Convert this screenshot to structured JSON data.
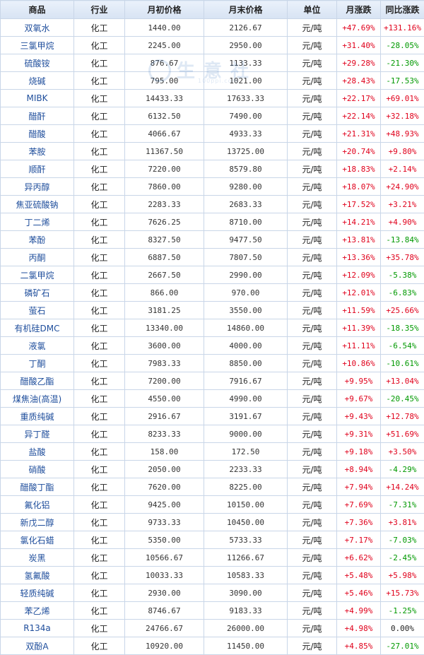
{
  "headers": [
    "商品",
    "行业",
    "月初价格",
    "月末价格",
    "单位",
    "月涨跌",
    "同比涨跌"
  ],
  "watermark": {
    "text": "生意社",
    "url": "100ppi.com"
  },
  "rows": [
    {
      "name": "双氧水",
      "industry": "化工",
      "start": "1440.00",
      "end": "2126.67",
      "unit": "元/吨",
      "mom": "+47.69%",
      "yoy": "+131.16%"
    },
    {
      "name": "三氯甲烷",
      "industry": "化工",
      "start": "2245.00",
      "end": "2950.00",
      "unit": "元/吨",
      "mom": "+31.40%",
      "yoy": "-28.05%"
    },
    {
      "name": "硫酸铵",
      "industry": "化工",
      "start": "876.67",
      "end": "1133.33",
      "unit": "元/吨",
      "mom": "+29.28%",
      "yoy": "-21.30%"
    },
    {
      "name": "烧碱",
      "industry": "化工",
      "start": "795.00",
      "end": "1021.00",
      "unit": "元/吨",
      "mom": "+28.43%",
      "yoy": "-17.53%"
    },
    {
      "name": "MIBK",
      "industry": "化工",
      "start": "14433.33",
      "end": "17633.33",
      "unit": "元/吨",
      "mom": "+22.17%",
      "yoy": "+69.01%"
    },
    {
      "name": "醋酐",
      "industry": "化工",
      "start": "6132.50",
      "end": "7490.00",
      "unit": "元/吨",
      "mom": "+22.14%",
      "yoy": "+32.18%"
    },
    {
      "name": "醋酸",
      "industry": "化工",
      "start": "4066.67",
      "end": "4933.33",
      "unit": "元/吨",
      "mom": "+21.31%",
      "yoy": "+48.93%"
    },
    {
      "name": "苯胺",
      "industry": "化工",
      "start": "11367.50",
      "end": "13725.00",
      "unit": "元/吨",
      "mom": "+20.74%",
      "yoy": "+9.80%"
    },
    {
      "name": "顺酐",
      "industry": "化工",
      "start": "7220.00",
      "end": "8579.80",
      "unit": "元/吨",
      "mom": "+18.83%",
      "yoy": "+2.14%"
    },
    {
      "name": "异丙醇",
      "industry": "化工",
      "start": "7860.00",
      "end": "9280.00",
      "unit": "元/吨",
      "mom": "+18.07%",
      "yoy": "+24.90%"
    },
    {
      "name": "焦亚硫酸钠",
      "industry": "化工",
      "start": "2283.33",
      "end": "2683.33",
      "unit": "元/吨",
      "mom": "+17.52%",
      "yoy": "+3.21%"
    },
    {
      "name": "丁二烯",
      "industry": "化工",
      "start": "7626.25",
      "end": "8710.00",
      "unit": "元/吨",
      "mom": "+14.21%",
      "yoy": "+4.90%"
    },
    {
      "name": "苯酚",
      "industry": "化工",
      "start": "8327.50",
      "end": "9477.50",
      "unit": "元/吨",
      "mom": "+13.81%",
      "yoy": "-13.84%"
    },
    {
      "name": "丙酮",
      "industry": "化工",
      "start": "6887.50",
      "end": "7807.50",
      "unit": "元/吨",
      "mom": "+13.36%",
      "yoy": "+35.78%"
    },
    {
      "name": "二氯甲烷",
      "industry": "化工",
      "start": "2667.50",
      "end": "2990.00",
      "unit": "元/吨",
      "mom": "+12.09%",
      "yoy": "-5.38%"
    },
    {
      "name": "磷矿石",
      "industry": "化工",
      "start": "866.00",
      "end": "970.00",
      "unit": "元/吨",
      "mom": "+12.01%",
      "yoy": "-6.83%"
    },
    {
      "name": "萤石",
      "industry": "化工",
      "start": "3181.25",
      "end": "3550.00",
      "unit": "元/吨",
      "mom": "+11.59%",
      "yoy": "+25.66%"
    },
    {
      "name": "有机硅DMC",
      "industry": "化工",
      "start": "13340.00",
      "end": "14860.00",
      "unit": "元/吨",
      "mom": "+11.39%",
      "yoy": "-18.35%"
    },
    {
      "name": "液氯",
      "industry": "化工",
      "start": "3600.00",
      "end": "4000.00",
      "unit": "元/吨",
      "mom": "+11.11%",
      "yoy": "-6.54%"
    },
    {
      "name": "丁酮",
      "industry": "化工",
      "start": "7983.33",
      "end": "8850.00",
      "unit": "元/吨",
      "mom": "+10.86%",
      "yoy": "-10.61%"
    },
    {
      "name": "醋酸乙酯",
      "industry": "化工",
      "start": "7200.00",
      "end": "7916.67",
      "unit": "元/吨",
      "mom": "+9.95%",
      "yoy": "+13.04%"
    },
    {
      "name": "煤焦油(高温)",
      "industry": "化工",
      "start": "4550.00",
      "end": "4990.00",
      "unit": "元/吨",
      "mom": "+9.67%",
      "yoy": "-20.45%"
    },
    {
      "name": "重质纯碱",
      "industry": "化工",
      "start": "2916.67",
      "end": "3191.67",
      "unit": "元/吨",
      "mom": "+9.43%",
      "yoy": "+12.78%"
    },
    {
      "name": "异丁醛",
      "industry": "化工",
      "start": "8233.33",
      "end": "9000.00",
      "unit": "元/吨",
      "mom": "+9.31%",
      "yoy": "+51.69%"
    },
    {
      "name": "盐酸",
      "industry": "化工",
      "start": "158.00",
      "end": "172.50",
      "unit": "元/吨",
      "mom": "+9.18%",
      "yoy": "+3.50%"
    },
    {
      "name": "硝酸",
      "industry": "化工",
      "start": "2050.00",
      "end": "2233.33",
      "unit": "元/吨",
      "mom": "+8.94%",
      "yoy": "-4.29%"
    },
    {
      "name": "醋酸丁酯",
      "industry": "化工",
      "start": "7620.00",
      "end": "8225.00",
      "unit": "元/吨",
      "mom": "+7.94%",
      "yoy": "+14.24%"
    },
    {
      "name": "氟化铝",
      "industry": "化工",
      "start": "9425.00",
      "end": "10150.00",
      "unit": "元/吨",
      "mom": "+7.69%",
      "yoy": "-7.31%"
    },
    {
      "name": "新戊二醇",
      "industry": "化工",
      "start": "9733.33",
      "end": "10450.00",
      "unit": "元/吨",
      "mom": "+7.36%",
      "yoy": "+3.81%"
    },
    {
      "name": "氯化石蜡",
      "industry": "化工",
      "start": "5350.00",
      "end": "5733.33",
      "unit": "元/吨",
      "mom": "+7.17%",
      "yoy": "-7.03%"
    },
    {
      "name": "炭黑",
      "industry": "化工",
      "start": "10566.67",
      "end": "11266.67",
      "unit": "元/吨",
      "mom": "+6.62%",
      "yoy": "-2.45%"
    },
    {
      "name": "氢氟酸",
      "industry": "化工",
      "start": "10033.33",
      "end": "10583.33",
      "unit": "元/吨",
      "mom": "+5.48%",
      "yoy": "+5.98%"
    },
    {
      "name": "轻质纯碱",
      "industry": "化工",
      "start": "2930.00",
      "end": "3090.00",
      "unit": "元/吨",
      "mom": "+5.46%",
      "yoy": "+15.73%"
    },
    {
      "name": "苯乙烯",
      "industry": "化工",
      "start": "8746.67",
      "end": "9183.33",
      "unit": "元/吨",
      "mom": "+4.99%",
      "yoy": "-1.25%"
    },
    {
      "name": "R134a",
      "industry": "化工",
      "start": "24766.67",
      "end": "26000.00",
      "unit": "元/吨",
      "mom": "+4.98%",
      "yoy": "0.00%"
    },
    {
      "name": "双酚A",
      "industry": "化工",
      "start": "10920.00",
      "end": "11450.00",
      "unit": "元/吨",
      "mom": "+4.85%",
      "yoy": "-27.01%"
    }
  ]
}
